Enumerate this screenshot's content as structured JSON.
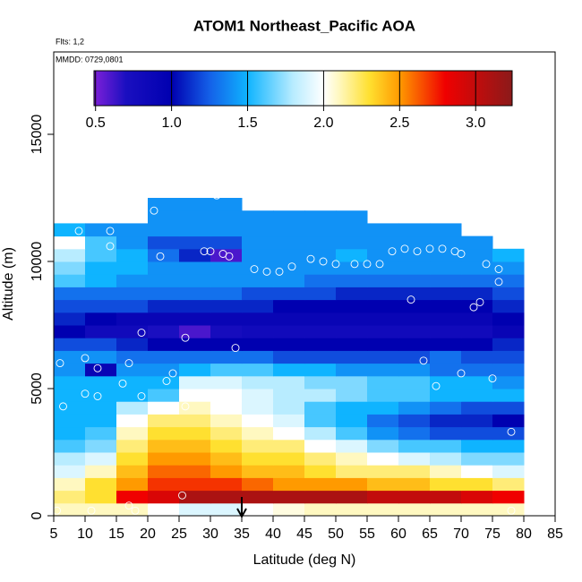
{
  "chart_data": {
    "type": "heatmap",
    "title": "ATOM1 Northeast_Pacific AOA",
    "annotations": [
      "Flts: 1,2",
      "MMDD: 0729,0801"
    ],
    "xlabel": "Latitude (deg N)",
    "ylabel": "Altitude (m)",
    "xlim": [
      5,
      85
    ],
    "ylim": [
      0,
      18240
    ],
    "xticks": [
      5,
      10,
      15,
      20,
      25,
      30,
      35,
      40,
      45,
      50,
      55,
      60,
      65,
      70,
      75,
      80,
      85
    ],
    "yticks": [
      0,
      5000,
      10000,
      15000
    ],
    "x_edges": [
      5,
      10,
      15,
      20,
      25,
      30,
      35,
      40,
      45,
      50,
      55,
      60,
      65,
      70,
      75,
      80
    ],
    "y_edges": [
      0,
      500,
      1000,
      1500,
      2000,
      2500,
      3000,
      3500,
      4000,
      4500,
      5000,
      5500,
      6000,
      6500,
      7000,
      7500,
      8000,
      8500,
      9000,
      9500,
      10000,
      10500,
      11000,
      11500,
      12000,
      12500
    ],
    "z": [
      [
        2.1,
        2.1,
        2.1,
        2.0,
        1.9,
        1.9,
        2.0,
        2.05,
        2.1,
        2.1,
        2.1,
        2.1,
        2.1,
        2.1,
        2.1
      ],
      [
        2.2,
        2.3,
        2.8,
        2.9,
        3.1,
        3.1,
        3.1,
        3.1,
        3.1,
        3.1,
        3.0,
        3.0,
        3.0,
        2.9,
        2.8
      ],
      [
        2.1,
        2.3,
        2.5,
        2.7,
        2.7,
        2.7,
        2.6,
        2.5,
        2.5,
        2.5,
        2.4,
        2.4,
        2.3,
        2.3,
        2.2
      ],
      [
        1.9,
        2.1,
        2.4,
        2.6,
        2.6,
        2.5,
        2.4,
        2.4,
        2.3,
        2.2,
        2.2,
        2.2,
        2.1,
        2.0,
        1.9
      ],
      [
        1.8,
        1.9,
        2.3,
        2.5,
        2.5,
        2.4,
        2.3,
        2.3,
        2.2,
        2.1,
        2.0,
        1.9,
        1.8,
        1.7,
        1.7
      ],
      [
        1.6,
        1.7,
        2.2,
        2.4,
        2.4,
        2.3,
        2.2,
        2.2,
        2.0,
        1.9,
        1.7,
        1.6,
        1.6,
        1.5,
        1.5
      ],
      [
        1.5,
        1.6,
        2.1,
        2.3,
        2.3,
        2.2,
        2.1,
        2.0,
        1.8,
        1.6,
        1.4,
        1.3,
        1.2,
        1.2,
        1.2
      ],
      [
        1.5,
        1.5,
        2.0,
        2.2,
        2.2,
        2.1,
        2.0,
        1.9,
        1.6,
        1.5,
        1.3,
        1.2,
        1.1,
        1.1,
        1.0
      ],
      [
        1.5,
        1.5,
        1.8,
        2.0,
        2.1,
        2.0,
        1.9,
        1.8,
        1.6,
        1.5,
        1.5,
        1.4,
        1.3,
        1.2,
        1.2
      ],
      [
        1.5,
        1.5,
        1.5,
        1.6,
        2.0,
        2.0,
        1.9,
        1.8,
        1.8,
        1.7,
        1.6,
        1.6,
        1.5,
        1.5,
        1.5
      ],
      [
        1.5,
        1.5,
        1.5,
        1.5,
        1.9,
        1.9,
        1.8,
        1.8,
        1.7,
        1.7,
        1.6,
        1.6,
        1.5,
        1.5,
        1.4
      ],
      [
        1.4,
        0.9,
        1.4,
        1.4,
        1.5,
        1.6,
        1.6,
        1.5,
        1.5,
        1.4,
        1.4,
        1.4,
        1.3,
        1.3,
        1.3
      ],
      [
        1.4,
        1.4,
        1.3,
        1.3,
        1.3,
        1.3,
        1.3,
        1.2,
        1.2,
        1.2,
        1.2,
        1.2,
        1.3,
        1.2,
        1.2
      ],
      [
        1.2,
        1.2,
        1.1,
        1.0,
        1.0,
        1.0,
        1.0,
        1.0,
        1.0,
        1.0,
        1.0,
        1.0,
        1.0,
        1.0,
        1.1
      ],
      [
        1.0,
        0.8,
        0.8,
        0.7,
        0.6,
        0.75,
        0.8,
        0.8,
        0.8,
        0.8,
        0.8,
        0.8,
        0.8,
        0.8,
        0.9
      ],
      [
        1.1,
        1.0,
        0.9,
        0.9,
        0.9,
        0.9,
        0.9,
        0.9,
        0.9,
        0.9,
        0.9,
        0.9,
        0.9,
        0.9,
        1.0
      ],
      [
        1.2,
        1.2,
        1.2,
        1.1,
        1.1,
        1.1,
        1.1,
        1.0,
        1.0,
        1.0,
        1.0,
        1.0,
        1.0,
        1.0,
        1.1
      ],
      [
        1.3,
        1.3,
        1.3,
        1.3,
        1.3,
        1.3,
        1.2,
        1.2,
        1.2,
        1.1,
        1.1,
        1.1,
        1.1,
        1.1,
        1.2
      ],
      [
        1.6,
        1.5,
        1.4,
        1.4,
        1.4,
        1.4,
        1.4,
        1.4,
        1.3,
        1.3,
        1.3,
        1.3,
        1.3,
        1.3,
        1.3
      ],
      [
        1.7,
        1.5,
        1.5,
        1.4,
        1.4,
        1.4,
        1.4,
        1.4,
        1.4,
        1.4,
        1.4,
        1.4,
        1.4,
        1.4,
        1.4
      ],
      [
        1.8,
        1.6,
        1.5,
        1.3,
        1.1,
        0.6,
        1.4,
        1.4,
        1.4,
        1.5,
        1.4,
        1.4,
        1.4,
        1.4,
        1.5
      ],
      [
        2.0,
        1.6,
        1.4,
        1.2,
        1.2,
        1.2,
        1.4,
        1.4,
        1.4,
        1.4,
        1.4,
        1.4,
        1.4,
        1.4,
        null
      ],
      [
        1.5,
        1.4,
        1.4,
        1.4,
        1.4,
        1.4,
        1.4,
        1.4,
        1.4,
        1.4,
        1.4,
        1.4,
        1.4,
        null,
        null
      ],
      [
        null,
        null,
        null,
        1.4,
        1.4,
        1.4,
        1.4,
        1.4,
        1.4,
        1.4,
        null,
        null,
        null,
        null,
        null
      ],
      [
        null,
        null,
        null,
        1.4,
        1.4,
        1.4,
        null,
        null,
        null,
        null,
        null,
        null,
        null,
        null,
        null
      ]
    ],
    "colorscale": [
      [
        0.5,
        "#7a1fd8"
      ],
      [
        0.7,
        "#1a0fc0"
      ],
      [
        1.0,
        "#0000b0"
      ],
      [
        1.25,
        "#1460e8"
      ],
      [
        1.5,
        "#0fb4ff"
      ],
      [
        1.8,
        "#b8ecff"
      ],
      [
        2.0,
        "#ffffff"
      ],
      [
        2.1,
        "#fff8c0"
      ],
      [
        2.3,
        "#ffe030"
      ],
      [
        2.5,
        "#ff9a00"
      ],
      [
        2.8,
        "#f00000"
      ],
      [
        3.24,
        "#8b1a1a"
      ]
    ],
    "colorbar": {
      "lim": [
        0.49,
        3.24
      ],
      "ticks": [
        0.5,
        {
          "value": 1,
          "label": "1.0"
        },
        1.5,
        {
          "value": 2,
          "label": "2.0"
        },
        2.5,
        {
          "value": 3,
          "label": "3.0"
        }
      ]
    },
    "points": {
      "color": "#ffffff",
      "x": [
        5.5,
        6,
        6.5,
        9,
        10,
        10,
        11,
        12,
        12,
        14,
        14,
        16,
        17,
        17,
        18,
        19,
        19,
        21,
        22,
        23,
        24,
        24,
        25.5,
        26,
        26,
        28,
        29,
        30,
        31,
        32,
        33,
        34,
        37,
        39,
        41,
        43,
        46,
        48,
        50,
        53,
        55,
        57,
        59,
        61,
        62,
        63,
        64,
        65,
        66,
        67,
        69,
        70,
        70,
        72,
        73,
        74,
        75,
        76,
        76,
        78,
        78
      ],
      "y": [
        200,
        6000,
        4300,
        11200,
        4800,
        6200,
        200,
        5800,
        4700,
        11200,
        10600,
        5200,
        6000,
        400,
        200,
        7200,
        4700,
        12000,
        10200,
        5300,
        200,
        5600,
        800,
        7000,
        4300,
        12700,
        10400,
        10400,
        12600,
        10300,
        10200,
        6600,
        9700,
        9600,
        9600,
        9800,
        10100,
        10000,
        9900,
        9900,
        9900,
        9900,
        10400,
        10500,
        8500,
        10400,
        6100,
        10500,
        5100,
        10500,
        10400,
        5600,
        10300,
        8200,
        8400,
        9900,
        5400,
        9700,
        9200,
        3300,
        200
      ]
    },
    "arrow_x": 35
  }
}
